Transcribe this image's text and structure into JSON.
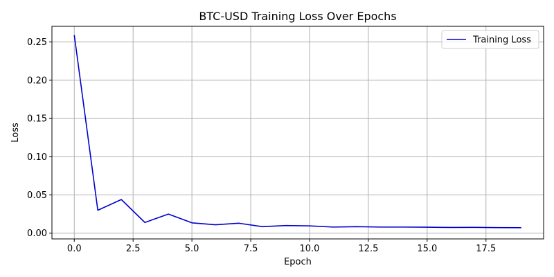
{
  "chart_data": {
    "type": "line",
    "title": "BTC-USD Training Loss Over Epochs",
    "xlabel": "Epoch",
    "ylabel": "Loss",
    "xlim": [
      -0.95,
      19.95
    ],
    "ylim": [
      -0.0075,
      0.2705
    ],
    "xticks": [
      0.0,
      2.5,
      5.0,
      7.5,
      10.0,
      12.5,
      15.0,
      17.5
    ],
    "xtick_labels": [
      "0.0",
      "2.5",
      "5.0",
      "7.5",
      "10.0",
      "12.5",
      "15.0",
      "17.5"
    ],
    "yticks": [
      0.0,
      0.05,
      0.1,
      0.15,
      0.2,
      0.25
    ],
    "ytick_labels": [
      "0.00",
      "0.05",
      "0.10",
      "0.15",
      "0.20",
      "0.25"
    ],
    "grid": true,
    "legend_position": "top-right",
    "series": [
      {
        "name": "Training Loss",
        "color": "#0000cc",
        "x": [
          0,
          1,
          2,
          3,
          4,
          5,
          6,
          7,
          8,
          9,
          10,
          11,
          12,
          13,
          14,
          15,
          16,
          17,
          18,
          19
        ],
        "y": [
          0.259,
          0.03,
          0.044,
          0.014,
          0.025,
          0.0135,
          0.011,
          0.013,
          0.0085,
          0.01,
          0.0095,
          0.008,
          0.0085,
          0.008,
          0.008,
          0.0078,
          0.0075,
          0.0076,
          0.0073,
          0.0072
        ]
      }
    ]
  }
}
